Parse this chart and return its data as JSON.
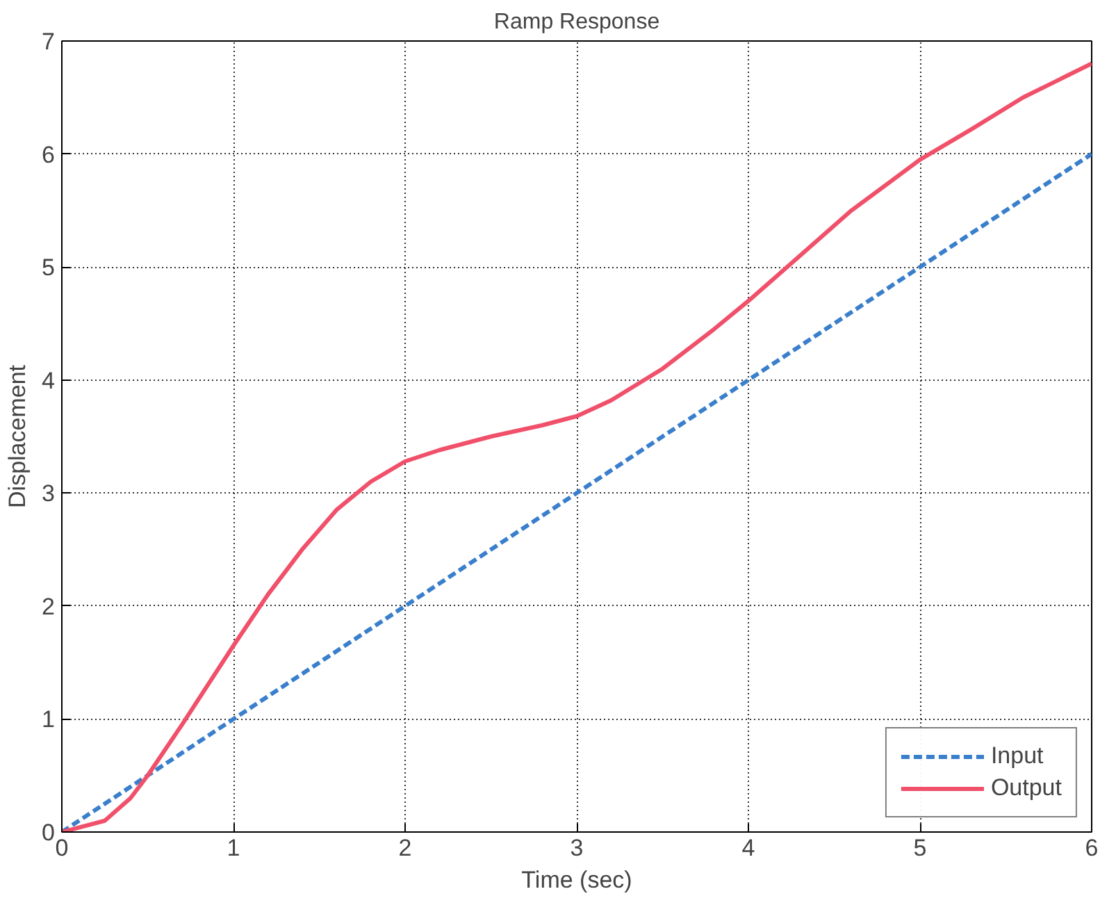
{
  "chart_data": {
    "type": "line",
    "title": "Ramp Response",
    "xlabel": "Time (sec)",
    "ylabel": "Displacement",
    "xlim": [
      0,
      6
    ],
    "ylim": [
      0,
      7
    ],
    "xticks": [
      0,
      1,
      2,
      3,
      4,
      5,
      6
    ],
    "yticks": [
      0,
      1,
      2,
      3,
      4,
      5,
      6,
      7
    ],
    "grid": true,
    "legend": "bottom right",
    "series": [
      {
        "name": "Input",
        "color": "#3a7fcc",
        "line_style": "dashed",
        "x": [
          0,
          6
        ],
        "values": [
          0,
          6
        ]
      },
      {
        "name": "Output",
        "color": "#f0506a",
        "line_style": "solid",
        "x": [
          0,
          0.25,
          0.4,
          0.5,
          0.7,
          0.85,
          1,
          1.2,
          1.4,
          1.6,
          1.8,
          2,
          2.2,
          2.5,
          2.8,
          3,
          3.2,
          3.5,
          3.8,
          4,
          4.3,
          4.6,
          5,
          5.3,
          5.6,
          6
        ],
        "values": [
          0,
          0.1,
          0.3,
          0.5,
          0.95,
          1.3,
          1.65,
          2.1,
          2.5,
          2.85,
          3.1,
          3.28,
          3.38,
          3.5,
          3.6,
          3.68,
          3.82,
          4.1,
          4.45,
          4.7,
          5.1,
          5.5,
          5.95,
          6.22,
          6.5,
          6.8
        ]
      }
    ]
  }
}
